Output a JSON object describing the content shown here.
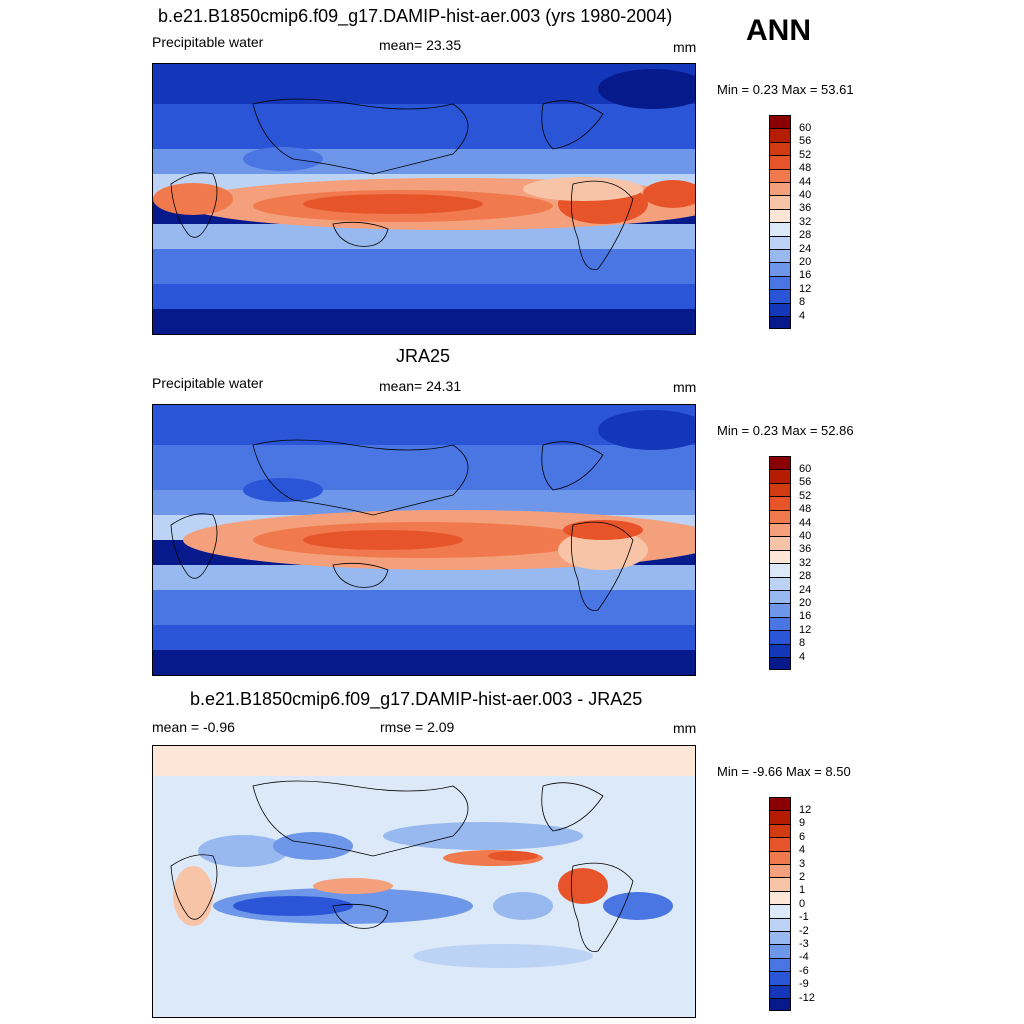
{
  "season": "ANN",
  "panels": [
    {
      "id": "model",
      "title": "b.e21.B1850cmip6.f09_g17.DAMIP-hist-aer.003 (yrs 1980-2004)",
      "left_label": "Precipitable water",
      "center_label": "mean=  23.35",
      "units": "mm",
      "minmax": "Min =   0.23 Max =  53.61",
      "colorbar": {
        "labels": [
          "60",
          "56",
          "52",
          "48",
          "44",
          "40",
          "36",
          "32",
          "28",
          "24",
          "20",
          "16",
          "12",
          "8",
          "4"
        ],
        "colors": [
          "#8b0000",
          "#b51c00",
          "#d23a12",
          "#e8542a",
          "#f07a4e",
          "#f5a07c",
          "#f8c4a8",
          "#fde6d6",
          "#dce9f8",
          "#bcd3f5",
          "#98b8f0",
          "#6e97ea",
          "#4a76e4",
          "#2a55d6",
          "#1436b8",
          "#061a8c"
        ]
      }
    },
    {
      "id": "obs",
      "title": "JRA25",
      "left_label": "Precipitable water",
      "center_label": "mean=  24.31",
      "units": "mm",
      "minmax": "Min =   0.23 Max =  52.86",
      "colorbar": {
        "labels": [
          "60",
          "56",
          "52",
          "48",
          "44",
          "40",
          "36",
          "32",
          "28",
          "24",
          "20",
          "16",
          "12",
          "8",
          "4"
        ],
        "colors": [
          "#8b0000",
          "#b51c00",
          "#d23a12",
          "#e8542a",
          "#f07a4e",
          "#f5a07c",
          "#f8c4a8",
          "#fde6d6",
          "#dce9f8",
          "#bcd3f5",
          "#98b8f0",
          "#6e97ea",
          "#4a76e4",
          "#2a55d6",
          "#1436b8",
          "#061a8c"
        ]
      }
    },
    {
      "id": "diff",
      "title": "b.e21.B1850cmip6.f09_g17.DAMIP-hist-aer.003 - JRA25",
      "left_label": "mean =  -0.96",
      "center_label": "rmse =   2.09",
      "units": "mm",
      "minmax": "Min =  -9.66 Max =   8.50",
      "colorbar": {
        "labels": [
          "12",
          "9",
          "6",
          "4",
          "3",
          "2",
          "1",
          "0",
          "-1",
          "-2",
          "-3",
          "-4",
          "-6",
          "-9",
          "-12"
        ],
        "colors": [
          "#8b0000",
          "#b51c00",
          "#d23a12",
          "#e8542a",
          "#f07a4e",
          "#f5a07c",
          "#f8c4a8",
          "#fde6d6",
          "#dce9f8",
          "#bcd3f5",
          "#98b8f0",
          "#6e97ea",
          "#4a76e4",
          "#2a55d6",
          "#1436b8",
          "#061a8c"
        ]
      }
    }
  ]
}
